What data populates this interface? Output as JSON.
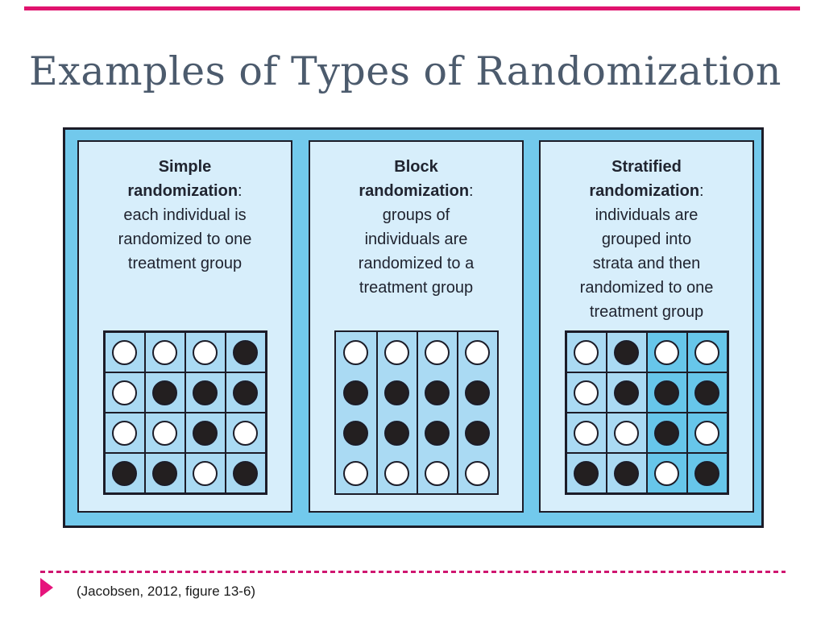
{
  "slide": {
    "title": "Examples of Types of Randomization",
    "citation": "(Jacobsen, 2012, figure 13-6)"
  },
  "colors": {
    "top_rule_pink": "#e0136e",
    "dashed_line_pink": "#cf1670",
    "bullet_triangle_pink": "#e6147c",
    "title_text": "#4c5b6d",
    "figure_outer_fill": "#72c9ec",
    "panel_fill": "#d7eefb",
    "grid_cell_fill": "#aadaf3",
    "strata_dark_fill": "#67c6ea",
    "line_border": "#1c1c28",
    "dot_black": "#231f20",
    "dot_white": "#ffffff",
    "body_text": "#202430"
  },
  "panels": [
    {
      "name": "Simple",
      "keyword": "randomization",
      "colon": ":",
      "desc_lines": [
        "each individual is",
        "randomized to one",
        "treatment group"
      ],
      "grid_type": "cells",
      "strata_dark_columns": [],
      "dots": [
        [
          "white",
          "white",
          "white",
          "black"
        ],
        [
          "white",
          "black",
          "black",
          "black"
        ],
        [
          "white",
          "white",
          "black",
          "white"
        ],
        [
          "black",
          "black",
          "white",
          "black"
        ]
      ]
    },
    {
      "name": "Block",
      "keyword": "randomization",
      "colon": ":",
      "desc_lines": [
        "groups of",
        "individuals are",
        "randomized to a",
        "treatment group"
      ],
      "grid_type": "columns",
      "strata_dark_columns": [],
      "dots": [
        [
          "white",
          "white",
          "white",
          "white"
        ],
        [
          "black",
          "black",
          "black",
          "black"
        ],
        [
          "black",
          "black",
          "black",
          "black"
        ],
        [
          "white",
          "white",
          "white",
          "white"
        ]
      ]
    },
    {
      "name": "Stratified",
      "keyword": "randomization",
      "colon": ":",
      "desc_lines": [
        "individuals are",
        "grouped into",
        "strata and then",
        "randomized to one",
        "treatment group"
      ],
      "grid_type": "cells",
      "strata_dark_columns": [
        2,
        3
      ],
      "dots": [
        [
          "white",
          "black",
          "white",
          "white"
        ],
        [
          "white",
          "black",
          "black",
          "black"
        ],
        [
          "white",
          "white",
          "black",
          "white"
        ],
        [
          "black",
          "black",
          "white",
          "black"
        ]
      ]
    }
  ]
}
